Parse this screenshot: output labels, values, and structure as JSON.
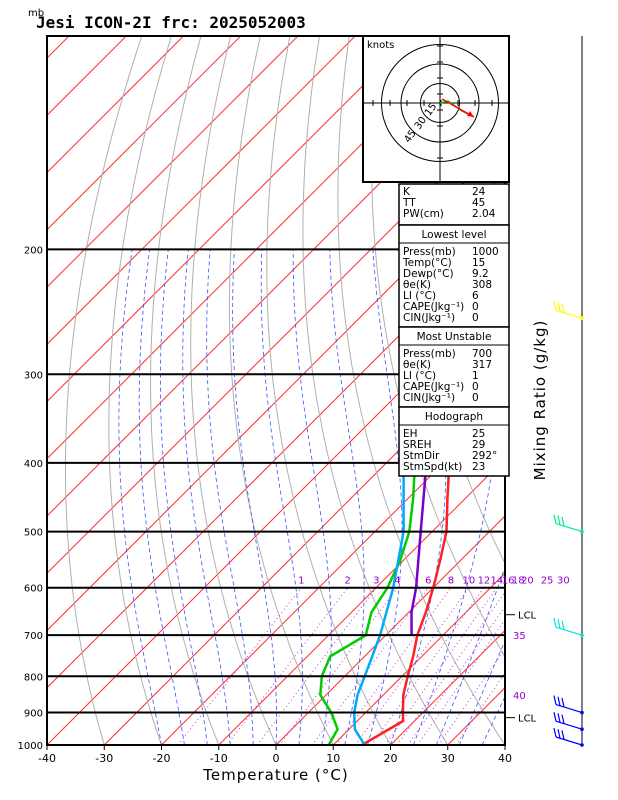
{
  "chart_data": {
    "type": "line",
    "title": "Jesi ICON-2I frc: 2025052003",
    "pressure_unit": "mb",
    "xlabel": "Temperature (°C)",
    "right_label": "Mixing Ratio (g/kg)",
    "xlim": [
      -40,
      40
    ],
    "ylim": [
      1000,
      100
    ],
    "x_ticks": [
      -40,
      -30,
      -20,
      -10,
      0,
      10,
      20,
      30,
      40
    ],
    "pressure_ticks": [
      1000,
      900,
      800,
      700,
      600,
      500,
      400,
      300,
      200
    ],
    "mixing_ratio_labels": [
      "1",
      "2",
      "3",
      "4",
      "6",
      "8",
      "10",
      "12",
      "14",
      "16",
      "18",
      "20",
      "25",
      "30"
    ],
    "mixing_ratio_values": [
      1,
      2,
      3,
      4,
      6,
      8,
      10,
      12,
      14,
      16,
      18,
      20,
      25,
      30
    ],
    "series": [
      {
        "name": "Temperature",
        "color": "#ff2020",
        "pressure": [
          1000,
          925,
          900,
          850,
          800,
          750,
          700,
          650,
          600,
          550,
          500,
          450,
          400,
          350,
          300,
          275
        ],
        "values": [
          15,
          18,
          16.5,
          13.5,
          11,
          8.5,
          5.5,
          3,
          0,
          -3.5,
          -7.5,
          -13,
          -19,
          -25.5,
          -33.5,
          -38
        ]
      },
      {
        "name": "Dewpoint",
        "color": "#00cc00",
        "pressure": [
          1000,
          950,
          900,
          850,
          800,
          750,
          700,
          650,
          600,
          550,
          500,
          450,
          400,
          350,
          300
        ],
        "values": [
          9.2,
          8,
          4,
          -1,
          -4,
          -6,
          -3.5,
          -6.5,
          -8,
          -10.5,
          -14,
          -19,
          -25,
          -32,
          -40
        ]
      },
      {
        "name": "Parcel",
        "color": "#7700cc",
        "pressure": [
          700,
          650,
          600,
          500,
          400,
          300,
          200,
          150,
          100
        ],
        "values": [
          4.5,
          0.5,
          -3,
          -12,
          -23,
          -38,
          -58,
          -68,
          -80
        ]
      },
      {
        "name": "Virtual temperature parcel",
        "color": "#00aaff",
        "pressure": [
          1000,
          950,
          900,
          850,
          800,
          700,
          600,
          500,
          400,
          300,
          200,
          150,
          100
        ],
        "values": [
          15.5,
          11,
          8,
          5.5,
          3.5,
          -1,
          -7,
          -15,
          -27,
          -42,
          -62,
          -73,
          -85
        ]
      }
    ],
    "annotations": {
      "lcl_label": "LCL",
      "lcl_pressures": [
        655,
        915
      ],
      "right_numbers": [
        {
          "text": "35",
          "pressure": 700
        },
        {
          "text": "40",
          "pressure": 850
        }
      ]
    },
    "wind_barbs": [
      {
        "pressure": 1000,
        "color": "#0000ff"
      },
      {
        "pressure": 950,
        "color": "#0000ff"
      },
      {
        "pressure": 900,
        "color": "#0000ff"
      },
      {
        "pressure": 700,
        "color": "#00e5cc"
      },
      {
        "pressure": 500,
        "color": "#00ee88"
      },
      {
        "pressure": 250,
        "color": "#ffff00"
      }
    ],
    "hodograph": {
      "unit_label": "knots",
      "ring_labels": [
        "15",
        "30",
        "45"
      ],
      "ring_values": [
        15,
        30,
        45
      ]
    }
  },
  "indices": {
    "rows": [
      {
        "label": "K",
        "value": "24"
      },
      {
        "label": "TT",
        "value": "45"
      },
      {
        "label": "PW(cm)",
        "value": "2.04"
      }
    ]
  },
  "lowest_level": {
    "heading": "Lowest level",
    "rows": [
      {
        "label": "Press(mb)",
        "value": "1000"
      },
      {
        "label": "Temp(°C)",
        "value": "15"
      },
      {
        "label": "Dewp(°C)",
        "value": "9.2"
      },
      {
        "label": "θe(K)",
        "value": "308"
      },
      {
        "label": "LI (°C)",
        "value": "6"
      },
      {
        "label": "CAPE(Jkg⁻¹)",
        "value": "0"
      },
      {
        "label": "CIN(Jkg⁻¹)",
        "value": "0"
      }
    ]
  },
  "most_unstable": {
    "heading": "Most Unstable",
    "rows": [
      {
        "label": "Press(mb)",
        "value": "700"
      },
      {
        "label": "θe(K)",
        "value": "317"
      },
      {
        "label": "LI (°C)",
        "value": "1"
      },
      {
        "label": "CAPE(Jkg⁻¹)",
        "value": "0"
      },
      {
        "label": "CIN(Jkg⁻¹)",
        "value": "0"
      }
    ]
  },
  "hodograph_table": {
    "heading": "Hodograph",
    "rows": [
      {
        "label": "EH",
        "value": "25"
      },
      {
        "label": "SREH",
        "value": "29"
      },
      {
        "label": "StmDir",
        "value": "292°"
      },
      {
        "label": "StmSpd(kt)",
        "value": "23"
      }
    ]
  }
}
